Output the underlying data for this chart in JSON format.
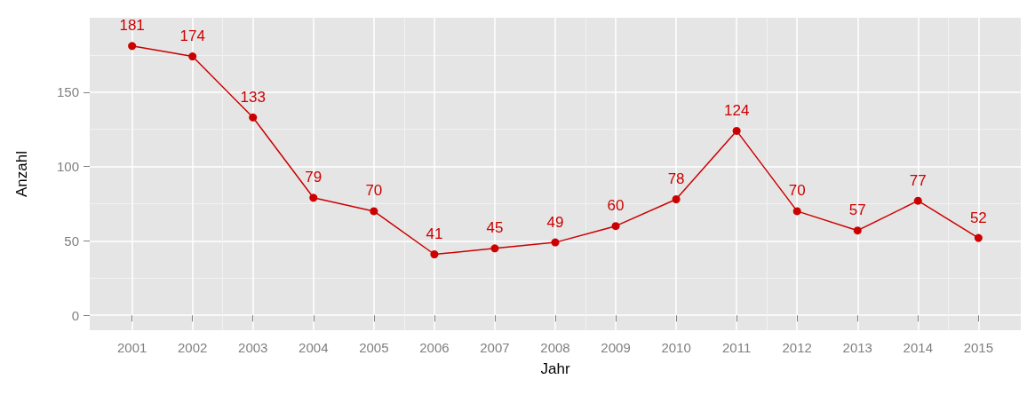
{
  "chart_data": {
    "type": "line",
    "xlabel": "Jahr",
    "ylabel": "Anzahl",
    "x": [
      2001,
      2002,
      2003,
      2004,
      2005,
      2006,
      2007,
      2008,
      2009,
      2010,
      2011,
      2012,
      2013,
      2014,
      2015
    ],
    "series": [
      {
        "color": "#cc0000",
        "values": [
          181,
          174,
          133,
          79,
          70,
          41,
          45,
          49,
          60,
          78,
          124,
          70,
          57,
          77,
          52
        ]
      }
    ],
    "xlim": [
      2000.3,
      2015.7
    ],
    "xticks": [
      2001,
      2002,
      2003,
      2004,
      2005,
      2006,
      2007,
      2008,
      2009,
      2010,
      2011,
      2012,
      2013,
      2014,
      2015
    ],
    "ylim": [
      -10,
      200
    ],
    "yticks": [
      0,
      50,
      100,
      150
    ],
    "grid": true,
    "data_labels": true,
    "marker": "circle",
    "line_style": "solid"
  }
}
